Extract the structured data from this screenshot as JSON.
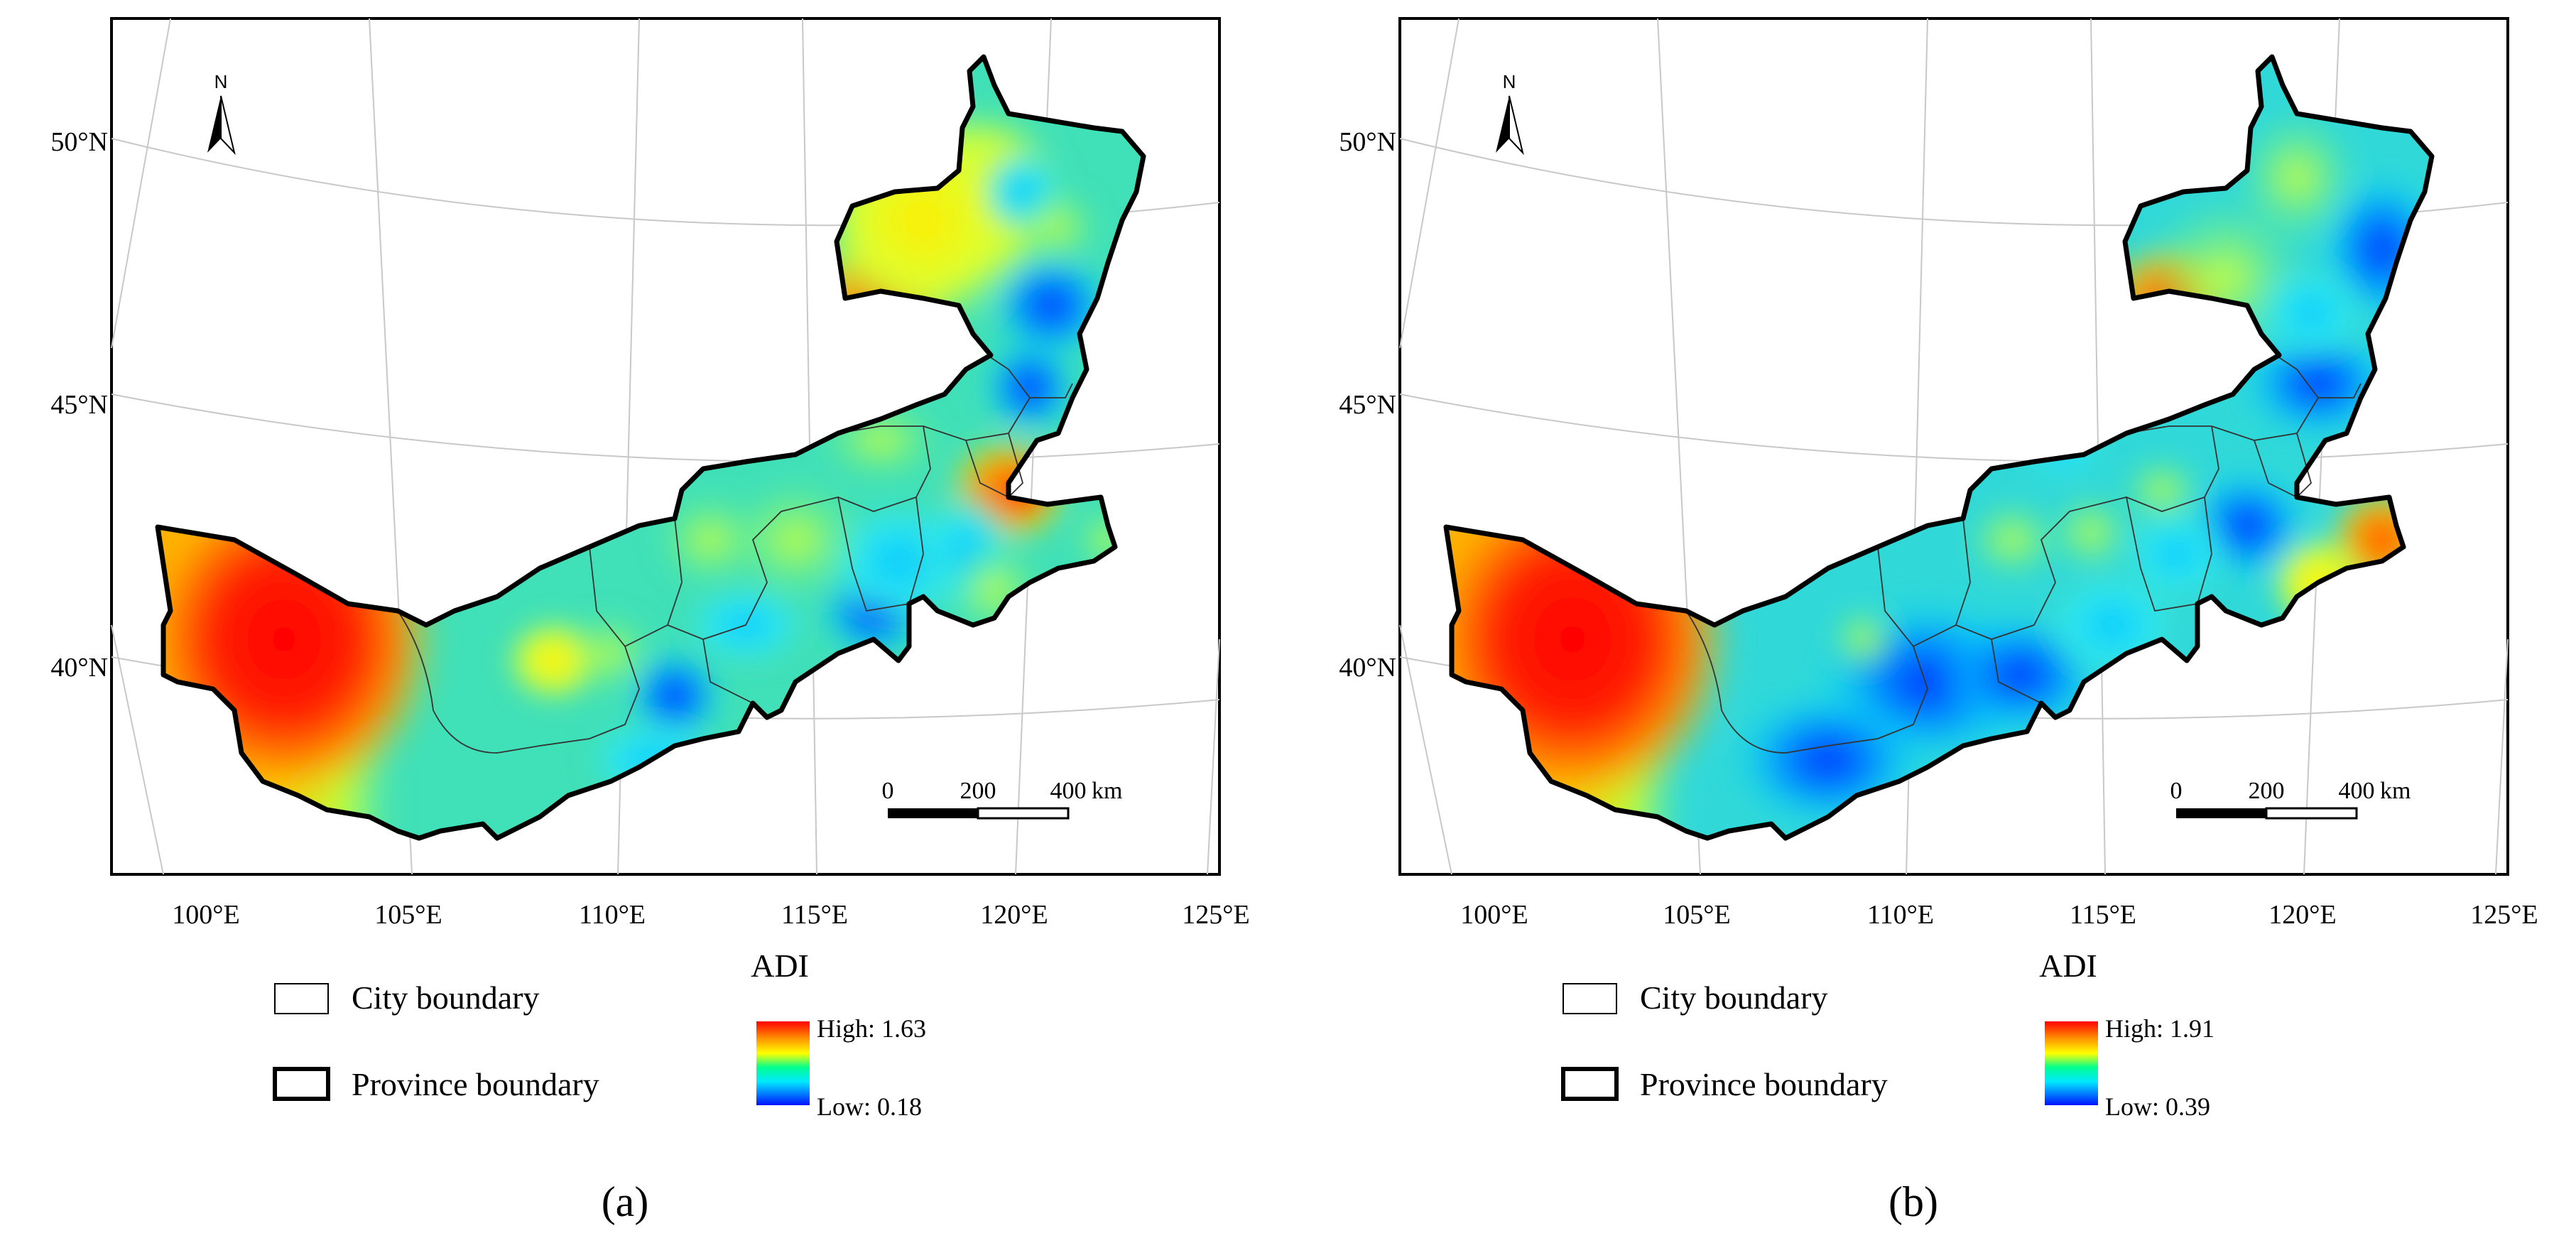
{
  "panels": [
    {
      "id": "a",
      "caption": "(a)",
      "scalebar": {
        "t0": "0",
        "t1": "200",
        "t2": "400",
        "unit": "km"
      },
      "latitude_labels": [
        "50°N",
        "45°N",
        "40°N"
      ],
      "longitude_labels": [
        "100°E",
        "105°E",
        "110°E",
        "115°E",
        "120°E",
        "125°E"
      ],
      "north_label": "N",
      "legend": {
        "title": "ADI",
        "city_boundary": "City boundary",
        "province_boundary": "Province boundary",
        "high": "High: 1.63",
        "low": "Low: 0.18"
      }
    },
    {
      "id": "b",
      "caption": "(b)",
      "scalebar": {
        "t0": "0",
        "t1": "200",
        "t2": "400",
        "unit": "km"
      },
      "latitude_labels": [
        "50°N",
        "45°N",
        "40°N"
      ],
      "longitude_labels": [
        "100°E",
        "105°E",
        "110°E",
        "115°E",
        "120°E",
        "125°E"
      ],
      "north_label": "N",
      "legend": {
        "title": "ADI",
        "city_boundary": "City boundary",
        "province_boundary": "Province boundary",
        "high": "High: 1.91",
        "low": "Low: 0.39"
      }
    }
  ],
  "colors": {
    "ramp": [
      "#ff0000",
      "#ff8000",
      "#ffff00",
      "#00ff80",
      "#00ffff",
      "#0080ff",
      "#0000ff"
    ],
    "base_fill": "#40e0b8"
  }
}
